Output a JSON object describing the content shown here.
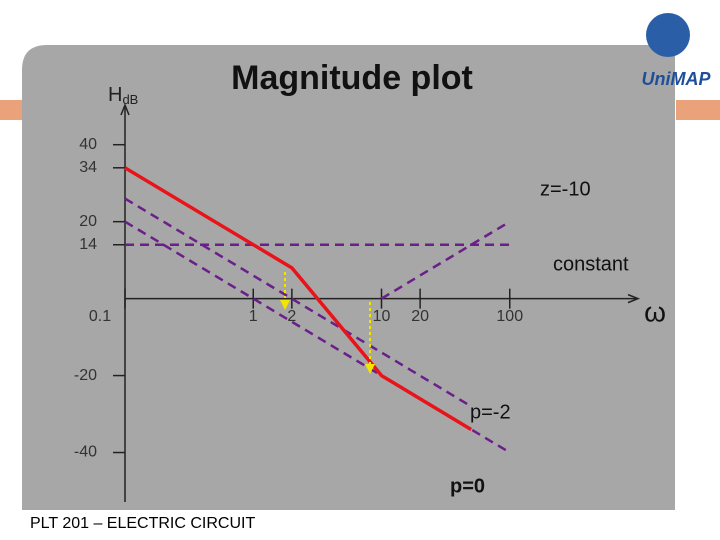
{
  "chart_data": {
    "type": "line",
    "title": "Magnitude plot",
    "x_label": "ω",
    "y_label": "H",
    "y_label_sub": "dB",
    "xscale": "log",
    "xlim": [
      0.1,
      1000
    ],
    "xticks": [
      0.1,
      1,
      2,
      10,
      20,
      100
    ],
    "ylim": [
      -50,
      55
    ],
    "yticks": [
      -40,
      -20,
      14,
      20,
      34,
      40
    ],
    "series": [
      {
        "name": "z=-10",
        "color": "#6a1f8a",
        "dashed": true,
        "x": [
          10,
          100
        ],
        "values": [
          0,
          20
        ]
      },
      {
        "name": "constant",
        "color": "#6a1f8a",
        "dashed": true,
        "x": [
          0.1,
          100
        ],
        "values": [
          14,
          14
        ]
      },
      {
        "name": "p=-2",
        "color": "#6a1f8a",
        "dashed": true,
        "x": [
          0.1,
          50
        ],
        "values": [
          26,
          -28
        ]
      },
      {
        "name": "p=0",
        "color": "#6a1f8a",
        "dashed": true,
        "x": [
          0.1,
          100
        ],
        "values": [
          20,
          -40
        ]
      },
      {
        "color": "#e8141a",
        "dashed": false,
        "x": [
          0.1,
          2,
          10,
          50
        ],
        "values": [
          34,
          8,
          -20,
          -34
        ]
      }
    ]
  },
  "footer": "PLT 201 – ELECTRIC CIRCUIT",
  "logo": "UniMAP"
}
